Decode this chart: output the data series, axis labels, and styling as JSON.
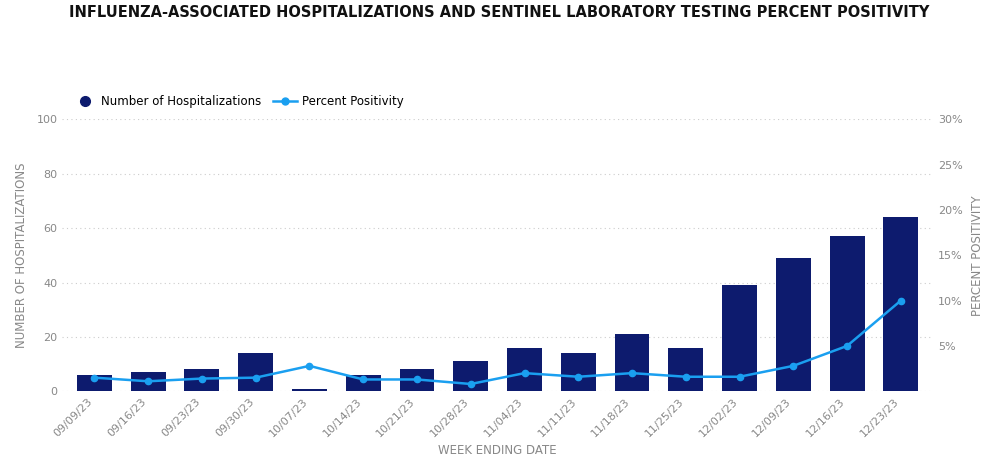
{
  "title": "INFLUENZA-ASSOCIATED HOSPITALIZATIONS AND SENTINEL LABORATORY TESTING PERCENT POSITIVITY",
  "xlabel": "WEEK ENDING DATE",
  "ylabel_left": "NUMBER OF HOSPITALIZATIONS",
  "ylabel_right": "PERCENT POSITIVITY",
  "categories": [
    "09/09/23",
    "09/16/23",
    "09/23/23",
    "09/30/23",
    "10/07/23",
    "10/14/23",
    "10/21/23",
    "10/28/23",
    "11/04/23",
    "11/11/23",
    "11/18/23",
    "11/25/23",
    "12/02/23",
    "12/09/23",
    "12/16/23",
    "12/23/23"
  ],
  "hospitalizations": [
    6,
    7,
    8,
    14,
    1,
    6,
    8,
    11,
    16,
    14,
    21,
    16,
    39,
    49,
    57,
    64
  ],
  "percent_positivity": [
    1.5,
    1.1,
    1.4,
    1.5,
    2.8,
    1.3,
    1.3,
    0.8,
    2.0,
    1.6,
    2.0,
    1.6,
    1.6,
    2.8,
    5.0,
    10.0
  ],
  "bar_color": "#0d1b6e",
  "line_color": "#1a9ff0",
  "marker_color": "#1a9ff0",
  "legend_hosp_color": "#0d1b6e",
  "legend_line_color": "#1a9ff0",
  "ylim_left": [
    0,
    100
  ],
  "ylim_right": [
    0,
    30
  ],
  "yticks_left": [
    0,
    20,
    40,
    60,
    80,
    100
  ],
  "yticks_right_values": [
    5,
    10,
    15,
    20,
    25,
    30
  ],
  "yticks_right_labels": [
    "5%",
    "10%",
    "15%",
    "20%",
    "25%",
    "30%"
  ],
  "background_color": "#ffffff",
  "title_fontsize": 10.5,
  "axis_label_fontsize": 8.5,
  "tick_fontsize": 8,
  "legend_fontsize": 8.5
}
